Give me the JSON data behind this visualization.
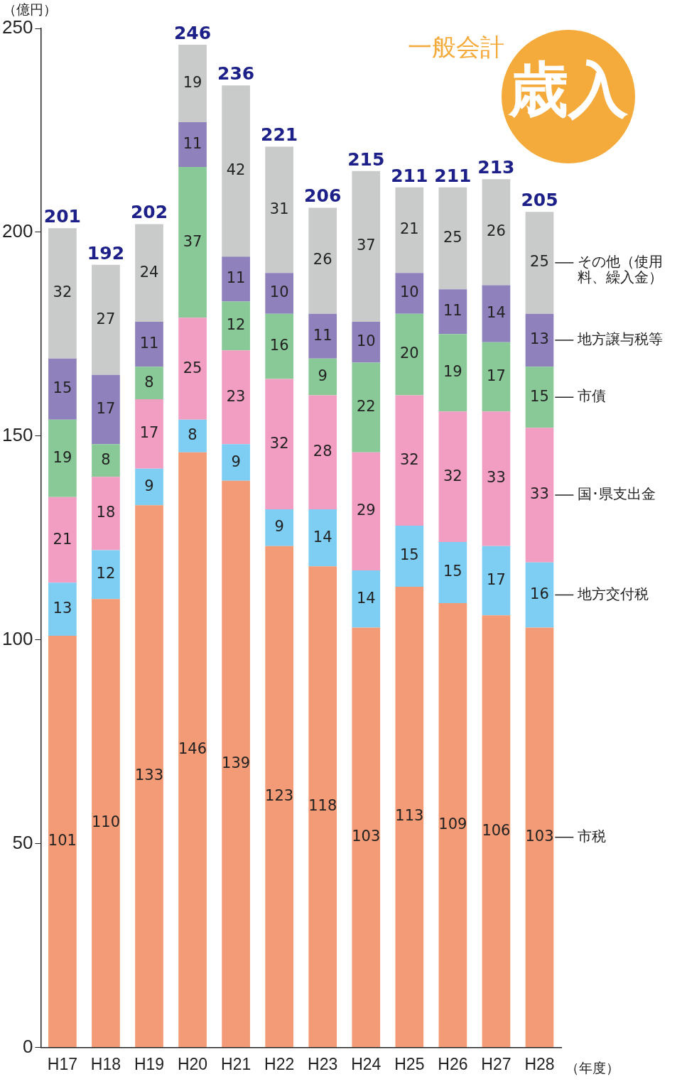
{
  "chart_data": {
    "type": "bar",
    "title": "一般会計",
    "subtitle": "歳入",
    "ylabel": "（億円）",
    "xlabel": "（年度）",
    "categories": [
      "H17",
      "H18",
      "H19",
      "H20",
      "H21",
      "H22",
      "H23",
      "H24",
      "H25",
      "H26",
      "H27",
      "H28"
    ],
    "series": [
      {
        "name": "市税",
        "color": "#f29b76",
        "values": [
          101,
          110,
          133,
          146,
          139,
          123,
          118,
          103,
          113,
          109,
          106,
          103
        ]
      },
      {
        "name": "地方交付税",
        "color": "#7ecef4",
        "values": [
          13,
          12,
          9,
          8,
          9,
          9,
          14,
          14,
          15,
          15,
          17,
          16
        ]
      },
      {
        "name": "国･県支出金",
        "color": "#f19ec2",
        "values": [
          21,
          18,
          17,
          25,
          23,
          32,
          28,
          29,
          32,
          32,
          33,
          33
        ]
      },
      {
        "name": "市債",
        "color": "#89c997",
        "values": [
          19,
          8,
          8,
          37,
          12,
          16,
          9,
          22,
          20,
          19,
          17,
          15
        ]
      },
      {
        "name": "地方譲与税等",
        "color": "#8f82bc",
        "values": [
          15,
          17,
          11,
          11,
          11,
          10,
          11,
          10,
          10,
          11,
          14,
          13
        ]
      },
      {
        "name": "その他（使用料、繰入金）",
        "color": "#c9caca",
        "values": [
          32,
          27,
          24,
          19,
          42,
          31,
          26,
          37,
          21,
          25,
          26,
          25
        ]
      }
    ],
    "stacked": true,
    "data_labels": true,
    "totals": [
      "201",
      "192",
      "202",
      "246",
      "236",
      "221",
      "206",
      "215",
      "211",
      "211",
      "213",
      "205"
    ],
    "ylim": [
      0,
      250
    ],
    "yticks": [
      0,
      50,
      100,
      150,
      200,
      250
    ],
    "grid": false,
    "legend": "right"
  }
}
